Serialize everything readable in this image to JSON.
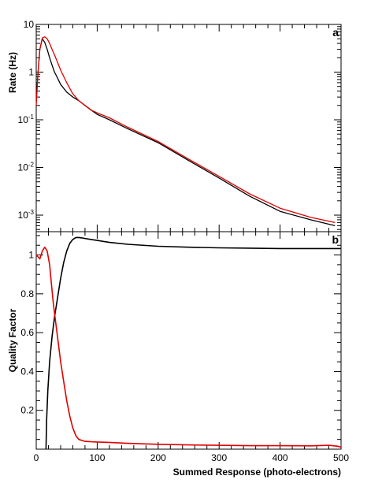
{
  "chart_data": [
    {
      "panel_label": "a",
      "type": "line",
      "ylabel": "Rate (Hz)",
      "xlabel": "",
      "xlim": [
        0,
        500
      ],
      "ylim": [
        0.00045,
        10
      ],
      "yscale": "log",
      "grid": false,
      "legend": "none",
      "yticks": [
        0.001,
        0.01,
        0.1,
        1,
        10
      ],
      "ytick_labels": [
        {
          "base": "10",
          "exp": "-3"
        },
        {
          "base": "10",
          "exp": "-2"
        },
        {
          "base": "10",
          "exp": "-1"
        },
        {
          "base": "1",
          "exp": ""
        },
        {
          "base": "10",
          "exp": ""
        }
      ],
      "series": [
        {
          "color": "#000000",
          "x": [
            0,
            3,
            6,
            10,
            14,
            18,
            22,
            26,
            30,
            35,
            40,
            50,
            60,
            70,
            80,
            90,
            100,
            120,
            150,
            200,
            250,
            300,
            350,
            400,
            450,
            490
          ],
          "y": [
            0.25,
            1.0,
            3.0,
            5.0,
            4.2,
            3.0,
            2.0,
            1.4,
            1.0,
            0.75,
            0.55,
            0.38,
            0.3,
            0.25,
            0.2,
            0.16,
            0.13,
            0.1,
            0.065,
            0.033,
            0.014,
            0.006,
            0.0025,
            0.0012,
            0.0008,
            0.0006
          ]
        },
        {
          "color": "#e00000",
          "x": [
            0,
            3,
            6,
            10,
            14,
            18,
            22,
            26,
            30,
            35,
            40,
            50,
            60,
            70,
            80,
            90,
            100,
            120,
            150,
            200,
            250,
            300,
            350,
            400,
            450,
            490
          ],
          "y": [
            0.2,
            1.0,
            3.0,
            5.2,
            5.5,
            5.0,
            4.0,
            3.0,
            2.3,
            1.6,
            1.1,
            0.6,
            0.35,
            0.25,
            0.2,
            0.16,
            0.14,
            0.11,
            0.07,
            0.035,
            0.015,
            0.0065,
            0.0028,
            0.0014,
            0.0009,
            0.0007
          ]
        }
      ]
    },
    {
      "panel_label": "b",
      "type": "line",
      "ylabel": "Quality Factor",
      "xlabel": "Summed Response (photo-electrons)",
      "xlim": [
        0,
        500
      ],
      "ylim": [
        0,
        1.12
      ],
      "yscale": "linear",
      "grid": false,
      "legend": "none",
      "xticks": [
        0,
        100,
        200,
        300,
        400,
        500
      ],
      "xtick_labels": [
        "0",
        "100",
        "200",
        "300",
        "400",
        "500"
      ],
      "yticks": [
        0.2,
        0.4,
        0.6,
        0.8,
        1
      ],
      "ytick_labels": [
        "0.2",
        "0.4",
        "0.6",
        "0.8",
        "1"
      ],
      "series": [
        {
          "color": "#000000",
          "x": [
            16,
            17,
            19,
            22,
            26,
            30,
            35,
            40,
            45,
            50,
            55,
            60,
            65,
            70,
            75,
            80,
            90,
            100,
            120,
            150,
            200,
            250,
            300,
            350,
            400,
            450,
            500
          ],
          "y": [
            0.0,
            0.15,
            0.3,
            0.45,
            0.58,
            0.68,
            0.78,
            0.88,
            0.96,
            1.02,
            1.06,
            1.08,
            1.09,
            1.09,
            1.088,
            1.085,
            1.08,
            1.075,
            1.065,
            1.055,
            1.045,
            1.04,
            1.037,
            1.035,
            1.033,
            1.033,
            1.033
          ]
        },
        {
          "color": "#e00000",
          "x": [
            0,
            3,
            6,
            10,
            14,
            18,
            22,
            25,
            28,
            32,
            36,
            40,
            45,
            50,
            55,
            60,
            65,
            70,
            75,
            80,
            90,
            100,
            120,
            150,
            200,
            250,
            300,
            350,
            400,
            450,
            480,
            495,
            500
          ],
          "y": [
            1.0,
            0.99,
            0.98,
            1.02,
            1.04,
            1.02,
            0.95,
            0.85,
            0.75,
            0.65,
            0.55,
            0.45,
            0.35,
            0.25,
            0.17,
            0.11,
            0.07,
            0.05,
            0.045,
            0.04,
            0.038,
            0.037,
            0.035,
            0.03,
            0.025,
            0.022,
            0.02,
            0.018,
            0.018,
            0.017,
            0.02,
            0.015,
            0.01
          ]
        }
      ]
    }
  ]
}
